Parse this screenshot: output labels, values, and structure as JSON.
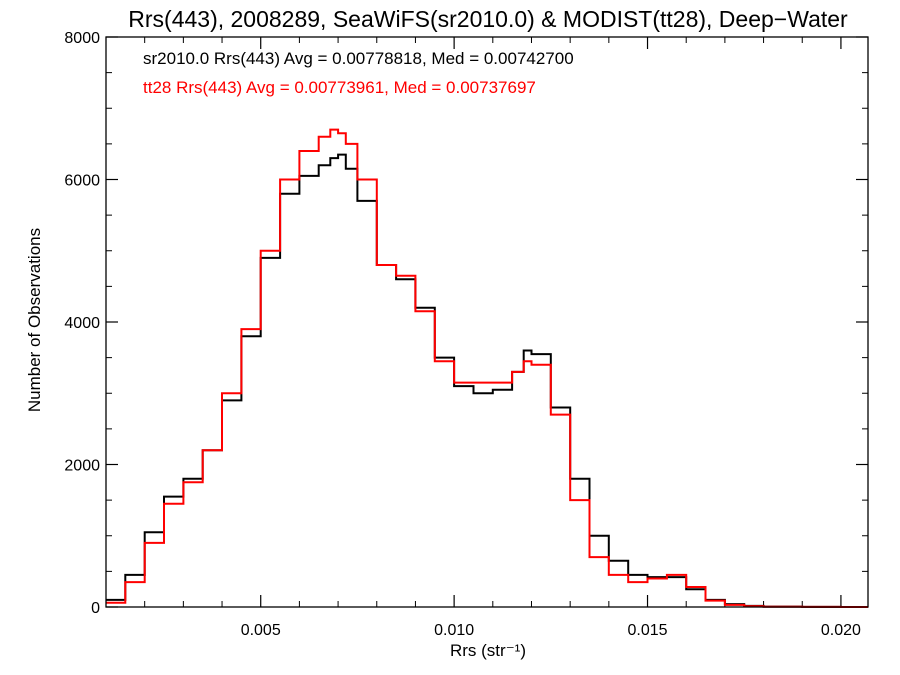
{
  "chart_data": {
    "type": "line",
    "title": "Rrs(443), 2008289, SeaWiFS(sr2010.0) & MODIST(tt28), Deep−Water",
    "xlabel": "Rrs (str⁻¹)",
    "ylabel": "Number of Observations",
    "xlim": [
      0.001,
      0.0207
    ],
    "ylim": [
      0,
      8000
    ],
    "xticks": [
      0.005,
      0.01,
      0.015,
      0.02
    ],
    "xtick_labels": [
      "0.005",
      "0.010",
      "0.015",
      "0.020"
    ],
    "yticks": [
      0,
      2000,
      4000,
      6000,
      8000
    ],
    "ytick_labels": [
      "0",
      "2000",
      "4000",
      "6000",
      "8000"
    ],
    "grid": false,
    "annotations": [
      {
        "text": "sr2010.0 Rrs(443) Avg = 0.00778818, Med = 0.00742700",
        "color": "#000000"
      },
      {
        "text": "tt28 Rrs(443) Avg = 0.00773961, Med = 0.00737697",
        "color": "#ff0000"
      }
    ],
    "series": [
      {
        "color": "#000000",
        "x": [
          0.001,
          0.0015,
          0.002,
          0.0025,
          0.003,
          0.0035,
          0.004,
          0.0045,
          0.005,
          0.0055,
          0.006,
          0.0065,
          0.0068,
          0.007,
          0.0072,
          0.0075,
          0.008,
          0.0085,
          0.009,
          0.0095,
          0.01,
          0.0105,
          0.011,
          0.0115,
          0.0118,
          0.012,
          0.0125,
          0.013,
          0.0135,
          0.014,
          0.0145,
          0.015,
          0.0155,
          0.016,
          0.0165,
          0.017,
          0.0175,
          0.018,
          0.019,
          0.02,
          0.0207
        ],
        "values": [
          100,
          450,
          1050,
          1550,
          1800,
          2200,
          2900,
          3800,
          4900,
          5800,
          6050,
          6200,
          6300,
          6350,
          6150,
          5700,
          4800,
          4600,
          4200,
          3500,
          3100,
          3000,
          3050,
          3300,
          3600,
          3550,
          2800,
          1800,
          1000,
          650,
          450,
          420,
          420,
          250,
          100,
          40,
          15,
          5,
          2,
          0,
          0
        ]
      },
      {
        "color": "#ff0000",
        "x": [
          0.001,
          0.0015,
          0.002,
          0.0025,
          0.003,
          0.0035,
          0.004,
          0.0045,
          0.005,
          0.0055,
          0.006,
          0.0065,
          0.0068,
          0.007,
          0.0072,
          0.0075,
          0.008,
          0.0085,
          0.009,
          0.0095,
          0.01,
          0.0105,
          0.011,
          0.0115,
          0.0118,
          0.012,
          0.0125,
          0.013,
          0.0135,
          0.014,
          0.0145,
          0.015,
          0.0155,
          0.016,
          0.0165,
          0.017,
          0.0175,
          0.018,
          0.019,
          0.02,
          0.0207
        ],
        "values": [
          60,
          350,
          900,
          1450,
          1750,
          2200,
          3000,
          3900,
          5000,
          6000,
          6400,
          6600,
          6700,
          6650,
          6500,
          6000,
          4800,
          4650,
          4150,
          3450,
          3150,
          3150,
          3150,
          3300,
          3450,
          3400,
          2700,
          1500,
          700,
          450,
          350,
          400,
          450,
          280,
          90,
          30,
          10,
          3,
          1,
          0,
          0
        ]
      }
    ]
  }
}
